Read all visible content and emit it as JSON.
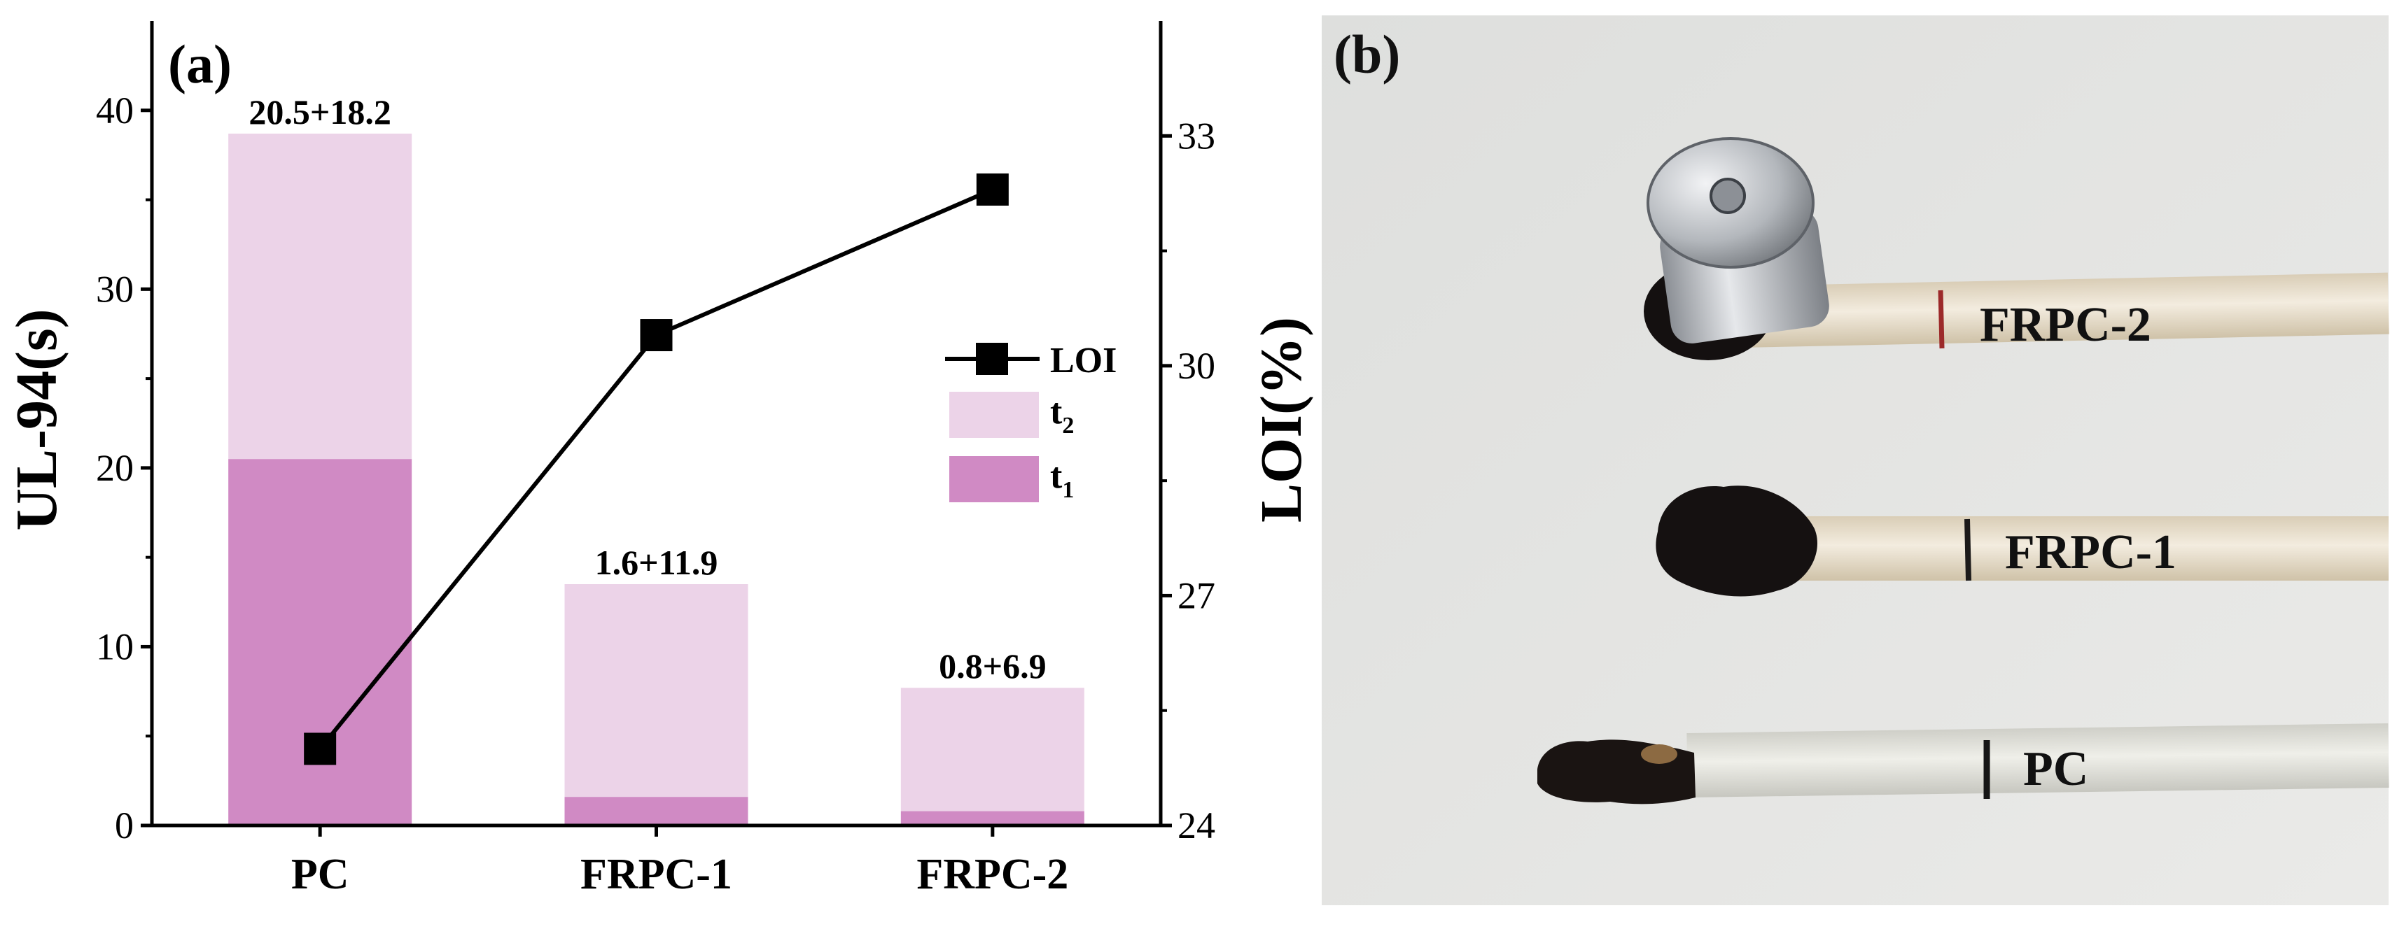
{
  "panel_a_label": "(a)",
  "panel_b_label": "(b)",
  "chart_data": {
    "type": "bar",
    "categories": [
      "PC",
      "FRPC-1",
      "FRPC-2"
    ],
    "series": [
      {
        "name": "t1",
        "values": [
          20.5,
          1.6,
          0.8
        ],
        "color": "#d08ac4"
      },
      {
        "name": "t2",
        "values": [
          18.2,
          11.9,
          6.9
        ],
        "color": "#ecd3e8"
      }
    ],
    "bar_labels": [
      "20.5+18.2",
      "1.6+11.9",
      "0.8+6.9"
    ],
    "line_series": {
      "name": "LOI",
      "values": [
        25.0,
        30.4,
        32.3
      ],
      "axis": "right",
      "color": "#000000",
      "marker": "square"
    },
    "ylabel": "UL-94(s)",
    "ylim": [
      0,
      45
    ],
    "yticks": [
      0,
      10,
      20,
      30,
      40
    ],
    "y2label": "LOI(%)",
    "y2lim": [
      24,
      34.5
    ],
    "y2ticks": [
      24,
      27,
      30,
      33
    ],
    "legend_position": "center-right",
    "grid": false
  },
  "photo": {
    "labels": [
      "FRPC-2",
      "FRPC-1",
      "PC"
    ],
    "colors": {
      "background": "#e4e4e2",
      "strip": "#ece4d4",
      "char": "#161212",
      "metal": "#b9bcc0"
    }
  }
}
